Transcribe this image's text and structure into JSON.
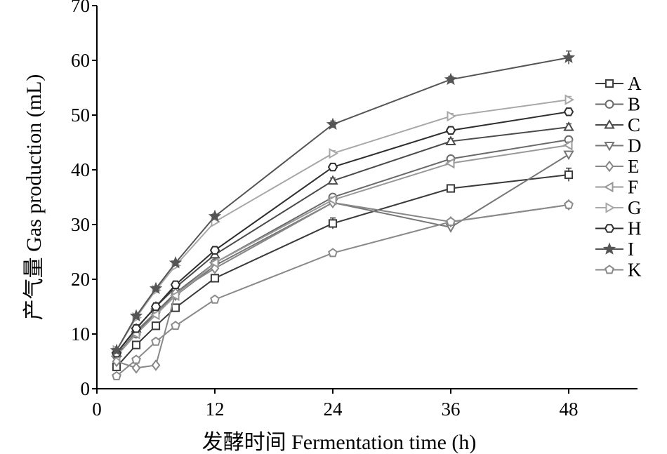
{
  "chart_data": {
    "type": "line",
    "title": "",
    "xlabel": "发酵时间 Fermentation time (h)",
    "ylabel": "产气量 Gas production (mL)",
    "xlim": [
      0,
      55
    ],
    "ylim": [
      0,
      70
    ],
    "xticks": [
      0,
      12,
      24,
      36,
      48
    ],
    "yticks": [
      0,
      10,
      20,
      30,
      40,
      50,
      60,
      70
    ],
    "x": [
      2,
      4,
      6,
      8,
      12,
      24,
      36,
      48
    ],
    "grid": false,
    "legend_position": "right",
    "series": [
      {
        "name": "A",
        "marker": "square",
        "marker_fill": "none",
        "color": "#3a3a3a",
        "values": [
          4.0,
          8.0,
          11.5,
          14.8,
          20.2,
          30.2,
          36.6,
          39.1
        ],
        "errors": [
          0.5,
          0.5,
          0.5,
          0.5,
          0.5,
          1.0,
          0.6,
          1.2
        ]
      },
      {
        "name": "B",
        "marker": "circle",
        "marker_fill": "none",
        "color": "#6a6a6a",
        "values": [
          6.0,
          10.0,
          14.0,
          17.5,
          23.0,
          35.0,
          42.0,
          45.5
        ],
        "errors": [
          0.3,
          0.3,
          0.3,
          0.3,
          0.4,
          0.5,
          0.5,
          0.6
        ]
      },
      {
        "name": "C",
        "marker": "triangle-up",
        "marker_fill": "none",
        "color": "#4a4a4a",
        "values": [
          6.5,
          11.0,
          15.0,
          18.5,
          24.5,
          38.0,
          45.2,
          47.8
        ],
        "errors": [
          0.3,
          0.3,
          0.3,
          0.3,
          0.4,
          0.5,
          0.5,
          0.6
        ]
      },
      {
        "name": "D",
        "marker": "triangle-down",
        "marker_fill": "none",
        "color": "#777777",
        "values": [
          6.0,
          10.5,
          14.0,
          17.0,
          22.5,
          34.0,
          29.5,
          42.8
        ],
        "errors": [
          0.3,
          0.3,
          0.3,
          0.3,
          0.4,
          0.5,
          0.5,
          0.6
        ]
      },
      {
        "name": "E",
        "marker": "diamond",
        "marker_fill": "none",
        "color": "#888888",
        "values": [
          5.0,
          3.8,
          4.3,
          17.5,
          22.0,
          34.0,
          30.5,
          33.6
        ],
        "errors": [
          0.3,
          0.3,
          0.3,
          0.3,
          0.4,
          0.5,
          0.5,
          0.6
        ]
      },
      {
        "name": "F",
        "marker": "triangle-left",
        "marker_fill": "none",
        "color": "#999999",
        "values": [
          6.0,
          10.0,
          13.5,
          17.0,
          23.0,
          34.5,
          41.2,
          44.5
        ],
        "errors": [
          0.3,
          0.3,
          0.3,
          0.3,
          0.4,
          0.5,
          0.5,
          0.6
        ]
      },
      {
        "name": "G",
        "marker": "triangle-right",
        "marker_fill": "none",
        "color": "#a8a8a8",
        "values": [
          7.0,
          13.0,
          18.0,
          22.5,
          30.5,
          43.0,
          49.8,
          52.8
        ],
        "errors": [
          0.3,
          0.3,
          0.3,
          0.3,
          0.4,
          0.5,
          0.5,
          0.6
        ]
      },
      {
        "name": "H",
        "marker": "hexagon",
        "marker_fill": "none",
        "color": "#2e2e2e",
        "values": [
          6.5,
          11.0,
          15.0,
          19.0,
          25.3,
          40.5,
          47.2,
          50.6
        ],
        "errors": [
          0.3,
          0.3,
          0.3,
          0.3,
          0.4,
          0.5,
          0.5,
          0.6
        ]
      },
      {
        "name": "I",
        "marker": "star",
        "marker_fill": "none",
        "color": "#555555",
        "values": [
          7.0,
          13.3,
          18.3,
          23.0,
          31.5,
          48.3,
          56.5,
          60.5
        ],
        "errors": [
          0.3,
          0.3,
          0.3,
          0.3,
          0.4,
          0.6,
          0.6,
          1.2
        ]
      },
      {
        "name": "K",
        "marker": "pentagon",
        "marker_fill": "none",
        "color": "#8a8a8a",
        "values": [
          2.3,
          5.3,
          8.6,
          11.5,
          16.3,
          24.8,
          30.5,
          33.6
        ],
        "errors": [
          0.2,
          0.2,
          0.2,
          0.2,
          0.3,
          0.4,
          0.4,
          0.4
        ]
      }
    ]
  }
}
